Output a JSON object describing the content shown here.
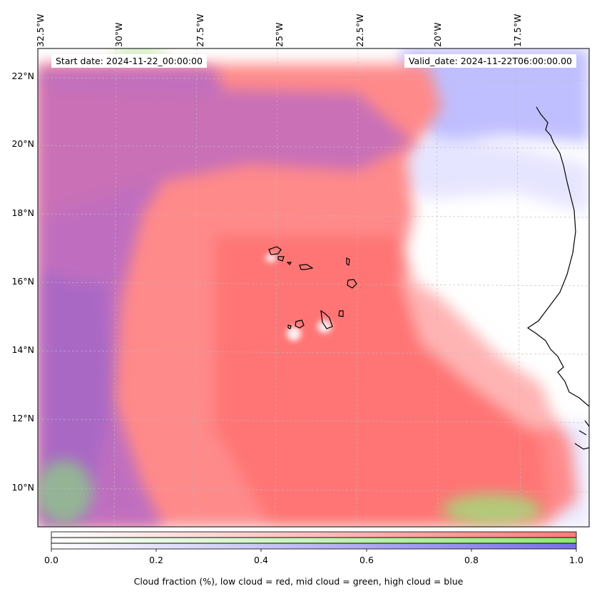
{
  "map": {
    "lon_labels": [
      "32.5°W",
      "30°W",
      "27.5°W",
      "25°W",
      "22.5°W",
      "20°W",
      "17.5°W"
    ],
    "lat_labels": [
      "22°N",
      "20°N",
      "18°N",
      "16°N",
      "14°N",
      "12°N",
      "10°N"
    ],
    "start_date": "Start date: 2024-11-22_00:00:00",
    "valid_date": "Valid_date: 2024-11-22T06:00:00.00"
  },
  "colorbar": {
    "ticks": [
      "0.0",
      "0.2",
      "0.4",
      "0.6",
      "0.8",
      "1.0"
    ],
    "title": "Cloud fraction (%), low cloud = red, mid cloud = green, high cloud = blue",
    "colors": {
      "low": "#ff7a7a",
      "mid": "#8ee86e",
      "high": "#7a6ee8"
    }
  }
}
